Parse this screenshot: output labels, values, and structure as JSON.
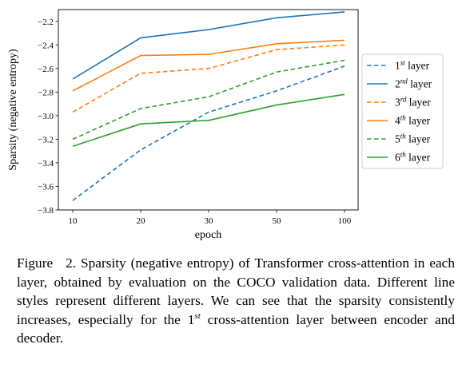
{
  "chart_data": {
    "type": "line",
    "xlabel": "epoch",
    "ylabel": "Sparsity (negative entropy)",
    "categories": [
      "10",
      "20",
      "30",
      "50",
      "100"
    ],
    "ylim": [
      -3.8,
      -2.1
    ],
    "yticks": [
      -3.8,
      -3.6,
      -3.4,
      -3.2,
      -3.0,
      -2.8,
      -2.6,
      -2.4,
      -2.2
    ],
    "ytick_labels": [
      "−3.8",
      "−3.6",
      "−3.4",
      "−3.2",
      "−3.0",
      "−2.8",
      "−2.6",
      "−2.4",
      "−2.2"
    ],
    "grid": false,
    "legend_position": "right",
    "series": [
      {
        "name_num": "1",
        "name_sup": "st",
        "name_rest": " layer",
        "color": "#1f77b4",
        "dashed": true,
        "values": [
          -3.72,
          -3.29,
          -2.97,
          -2.79,
          -2.58
        ]
      },
      {
        "name_num": "2",
        "name_sup": "nd",
        "name_rest": " layer",
        "color": "#1f77b4",
        "dashed": false,
        "values": [
          -2.69,
          -2.34,
          -2.27,
          -2.17,
          -2.12
        ]
      },
      {
        "name_num": "3",
        "name_sup": "rd",
        "name_rest": " layer",
        "color": "#ff7f0e",
        "dashed": true,
        "values": [
          -2.97,
          -2.64,
          -2.6,
          -2.44,
          -2.4
        ]
      },
      {
        "name_num": "4",
        "name_sup": "th",
        "name_rest": " layer",
        "color": "#ff7f0e",
        "dashed": false,
        "values": [
          -2.79,
          -2.49,
          -2.48,
          -2.39,
          -2.36
        ]
      },
      {
        "name_num": "5",
        "name_sup": "th",
        "name_rest": " layer",
        "color": "#2ca02c",
        "dashed": true,
        "values": [
          -3.2,
          -2.94,
          -2.84,
          -2.63,
          -2.53
        ]
      },
      {
        "name_num": "6",
        "name_sup": "th",
        "name_rest": " layer",
        "color": "#2ca02c",
        "dashed": false,
        "values": [
          -3.26,
          -3.07,
          -3.04,
          -2.91,
          -2.82
        ]
      }
    ]
  },
  "caption": {
    "label": "Figure 2.",
    "text_before_sup": "Sparsity (negative entropy) of Transformer cross-attention in each layer, obtained by evaluation on the COCO validation data. Different line styles represent different layers. We can see that the sparsity consistently increases, especially for the 1",
    "sup": "st",
    "text_after_sup": " cross-attention layer between encoder and decoder."
  }
}
